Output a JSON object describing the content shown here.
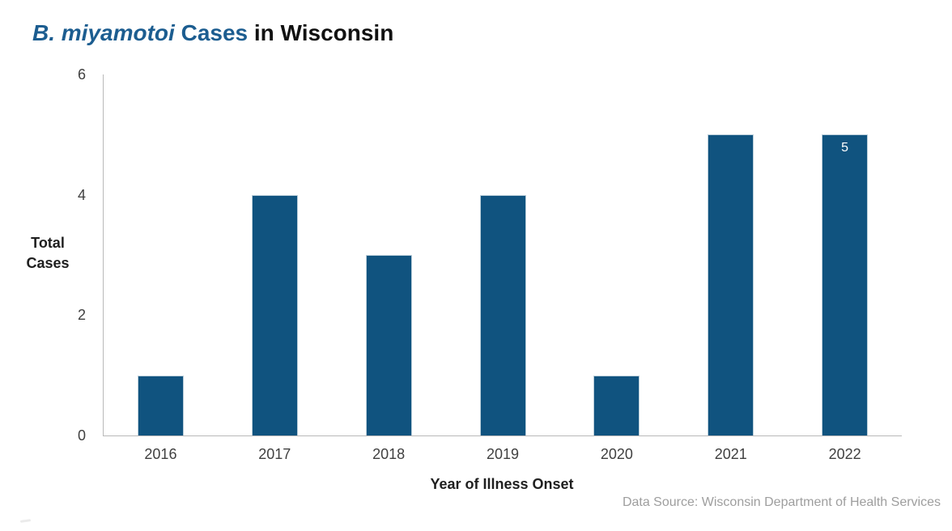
{
  "title": {
    "segments": [
      {
        "text": "B. miyamotoi",
        "style": "italic-blue"
      },
      {
        "text": " Cases",
        "style": "blue"
      },
      {
        "text": " in Wisconsin",
        "style": "black"
      }
    ],
    "accent_color": "#1c5d90"
  },
  "chart_data": {
    "type": "bar",
    "categories": [
      "2016",
      "2017",
      "2018",
      "2019",
      "2020",
      "2021",
      "2022"
    ],
    "values": [
      1,
      4,
      3,
      4,
      1,
      5,
      5
    ],
    "title": "B. miyamotoi Cases in Wisconsin",
    "xlabel": "Year of Illness Onset",
    "ylabel": "Total Cases",
    "ylim": [
      0,
      6
    ],
    "yticks": [
      0,
      2,
      4,
      6
    ],
    "grid": false,
    "legend": false,
    "bar_color": "#10537f",
    "bar_border_color": "#b9cdd9",
    "bar_label": {
      "category": "2022",
      "text": "5"
    }
  },
  "footer": {
    "source": "Data Source: Wisconsin Department of Health Services"
  }
}
